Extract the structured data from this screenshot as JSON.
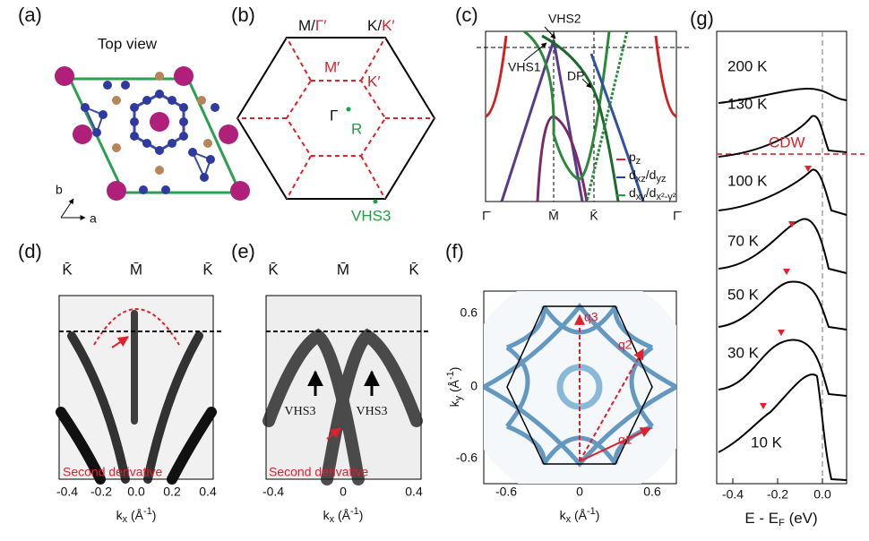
{
  "panels": {
    "a": {
      "label": "(a)",
      "title": "Top view",
      "axis_b": "b",
      "axis_a": "a"
    },
    "b": {
      "label": "(b)",
      "top_left": [
        "M/",
        "Γ′"
      ],
      "top_right": [
        "K/",
        "K′"
      ],
      "m_prime": "M′",
      "k_prime": "K′",
      "gamma": "Γ",
      "r": "R",
      "vhs3": "VHS3"
    },
    "c": {
      "label": "(c)",
      "vhs2": "VHS2",
      "vhs1": "VHS1",
      "dp": "DP",
      "xticks": [
        "Γ̄",
        "M̄",
        "K̄",
        "Γ̄"
      ],
      "legend": [
        [
          [
            "p",
            "z"
          ]
        ],
        [
          [
            "d",
            "xz"
          ],
          [
            "/d",
            "yz"
          ]
        ],
        [
          [
            "d",
            "xy"
          ],
          [
            "/d",
            "x²-y²"
          ]
        ]
      ]
    },
    "d": {
      "label": "(d)",
      "top_ticks": [
        "K̄",
        "M̄",
        "K̄"
      ],
      "note": "Second derivative",
      "xticks": [
        "-0.4",
        "-0.2",
        "0.0",
        "0.2",
        "0.4"
      ],
      "xlabel": [
        "k",
        "x",
        " (Å",
        "-1",
        ")"
      ]
    },
    "e": {
      "label": "(e)",
      "top_ticks": [
        "K̄",
        "M̄",
        "K̄"
      ],
      "vhs": [
        "VHS3",
        "VHS3"
      ],
      "note": "Second derivative",
      "xticks": [
        "-0.4",
        "0",
        "0.4"
      ],
      "xlabel": [
        "k",
        "x",
        " (Å",
        "-1",
        ")"
      ]
    },
    "f": {
      "label": "(f)",
      "q": [
        "q1",
        "q2",
        "q3"
      ],
      "xticks": [
        "-0.6",
        "0",
        "0.6"
      ],
      "yticks": [
        "0.6",
        "0",
        "-0.6"
      ],
      "xlabel": [
        "k",
        "x",
        " (Å",
        "-1",
        ")"
      ],
      "ylabel": [
        "k",
        "y",
        " (Å",
        "-1",
        ")"
      ]
    },
    "g": {
      "label": "(g)",
      "temps": [
        "200 K",
        "130 K",
        "100 K",
        "70 K",
        "50 K",
        "30 K",
        "10 K"
      ],
      "cdw": "CDW",
      "xticks": [
        "-0.4",
        "-0.2",
        "0.0"
      ],
      "xlabel": [
        "E - E",
        "F",
        " (eV)"
      ]
    }
  }
}
